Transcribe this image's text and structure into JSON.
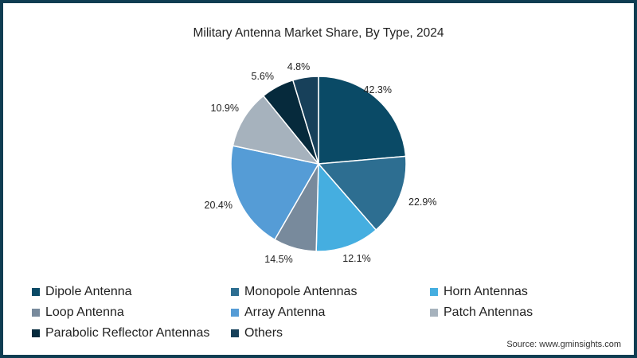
{
  "chart_data": {
    "type": "pie",
    "title": "Military Antenna Market Share, By Type, 2024",
    "categories": [
      "Dipole Antenna",
      "Monopole Antennas",
      "Horn Antennas",
      "Loop Antenna",
      "Array Antenna",
      "Patch Antennas",
      "Parabolic Reflector Antennas",
      "Others"
    ],
    "values": [
      42.3,
      22.9,
      12.1,
      14.5,
      20.4,
      10.9,
      5.6,
      4.8
    ],
    "value_labels": [
      "42.3%",
      "22.9%",
      "12.1%",
      "14.5%",
      "20.4%",
      "10.9%",
      "5.6%",
      "4.8%"
    ],
    "colors": [
      "#0a4a66",
      "#2d6e91",
      "#45aee0",
      "#788a9c",
      "#559cd6",
      "#a6b2bd",
      "#062a3c",
      "#17405a"
    ],
    "legend_position": "bottom",
    "unit": "%"
  },
  "title": "Military Antenna Market Share, By Type, 2024",
  "legend": {
    "items": [
      {
        "label": "Dipole Antenna",
        "color": "#0a4a66"
      },
      {
        "label": "Monopole Antennas",
        "color": "#2d6e91"
      },
      {
        "label": "Horn Antennas",
        "color": "#45aee0"
      },
      {
        "label": "Loop Antenna",
        "color": "#788a9c"
      },
      {
        "label": "Array Antenna",
        "color": "#559cd6"
      },
      {
        "label": "Patch Antennas",
        "color": "#a6b2bd"
      },
      {
        "label": "Parabolic Reflector Antennas",
        "color": "#062a3c"
      },
      {
        "label": "Others",
        "color": "#17405a"
      }
    ]
  },
  "source": "Source: www.gminsights.com",
  "colors": {
    "border": "#0f3d52",
    "text": "#222222"
  }
}
